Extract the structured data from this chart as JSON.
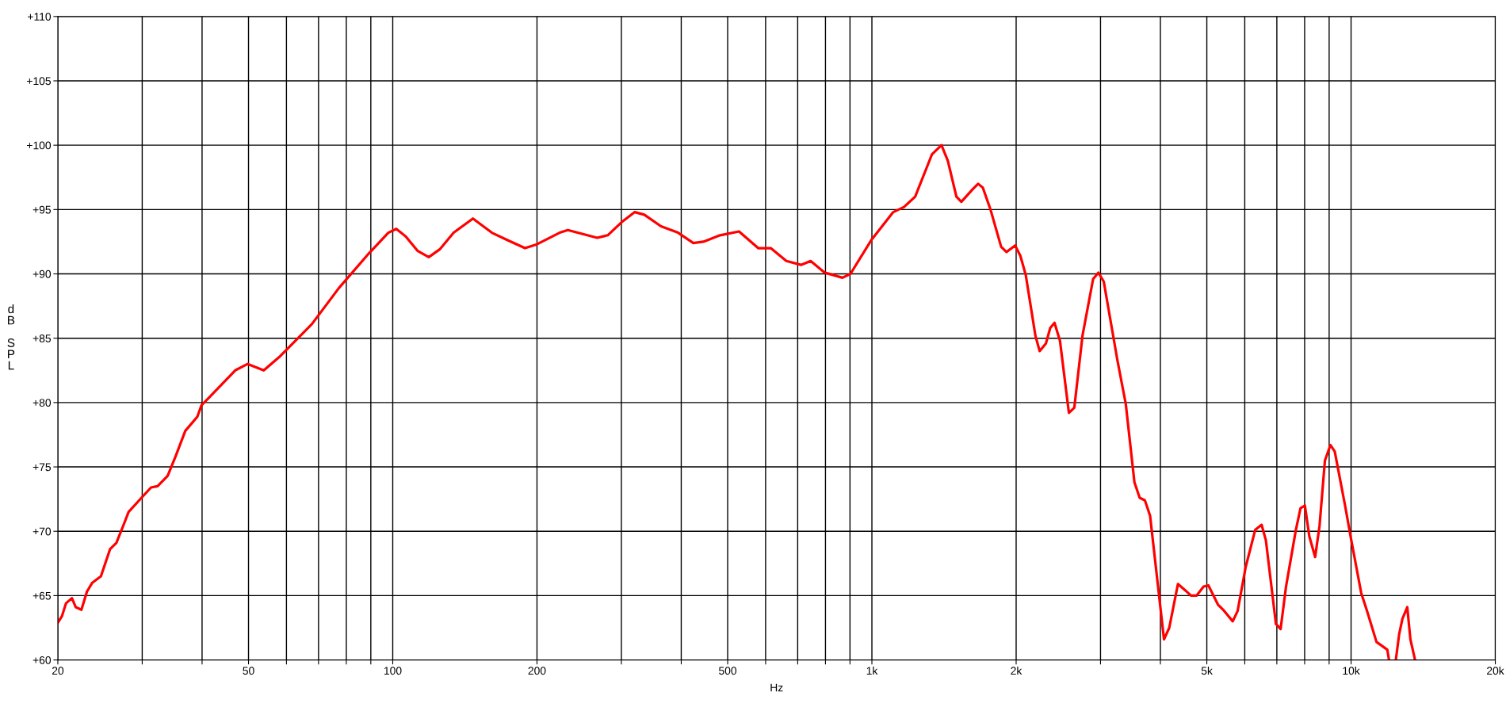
{
  "chart_data": {
    "type": "line",
    "xlabel": "Hz",
    "ylabel": "dB SPL",
    "log": "x",
    "grid": true,
    "marker": "none",
    "line_style": "solid",
    "xlim": [
      20,
      20000
    ],
    "ylim": [
      60,
      110
    ],
    "xticks": [
      20,
      {
        "value": 30,
        "label": null
      },
      {
        "value": 40,
        "label": null
      },
      50,
      {
        "value": 60,
        "label": null
      },
      {
        "value": 70,
        "label": null
      },
      {
        "value": 80,
        "label": null
      },
      {
        "value": 90,
        "label": null
      },
      100,
      200,
      {
        "value": 300,
        "label": null
      },
      {
        "value": 400,
        "label": null
      },
      500,
      {
        "value": 600,
        "label": null
      },
      {
        "value": 700,
        "label": null
      },
      {
        "value": 800,
        "label": null
      },
      {
        "value": 900,
        "label": null
      },
      {
        "value": 1000,
        "label": "1k"
      },
      {
        "value": 2000,
        "label": "2k"
      },
      {
        "value": 3000,
        "label": null
      },
      {
        "value": 4000,
        "label": null
      },
      {
        "value": 5000,
        "label": "5k"
      },
      {
        "value": 6000,
        "label": null
      },
      {
        "value": 7000,
        "label": null
      },
      {
        "value": 8000,
        "label": null
      },
      {
        "value": 9000,
        "label": null
      },
      {
        "value": 10000,
        "label": "10k"
      },
      {
        "value": 20000,
        "label": "20k"
      }
    ],
    "yticks": [
      {
        "value": 60,
        "label": "+60"
      },
      {
        "value": 65,
        "label": "+65"
      },
      {
        "value": 70,
        "label": "+70"
      },
      {
        "value": 75,
        "label": "+75"
      },
      {
        "value": 80,
        "label": "+80"
      },
      {
        "value": 85,
        "label": "+85"
      },
      {
        "value": 90,
        "label": "+90"
      },
      {
        "value": 95,
        "label": "+95"
      },
      {
        "value": 100,
        "label": "+100"
      },
      {
        "value": 105,
        "label": "+105"
      },
      {
        "value": 110,
        "label": "+110"
      }
    ],
    "series": [
      {
        "color": "#ff0000",
        "x": [
          20,
          20.4,
          20.8,
          21.4,
          21.8,
          22.4,
          23.0,
          23.6,
          24.6,
          25.7,
          26.5,
          27.5,
          28.1,
          29.9,
          31.3,
          32.3,
          33.9,
          35.2,
          36.9,
          39.1,
          39.9,
          41.4,
          46.9,
          49.8,
          53.8,
          58.2,
          60,
          67.8,
          77.2,
          89.2,
          97.9,
          101.7,
          106.5,
          112.6,
          118.9,
          125.3,
          134,
          147,
          161,
          174,
          188.8,
          200,
          223,
          232,
          267,
          281,
          300,
          320,
          335,
          363,
          394,
          424,
          445,
          482,
          528,
          579,
          615,
          663,
          711,
          745,
          797,
          868,
          902,
          996,
          1108,
          1167,
          1231,
          1335,
          1397,
          1440,
          1501,
          1537,
          1625,
          1666,
          1704,
          1768,
          1861,
          1909,
          1990,
          2041,
          2095,
          2194,
          2239,
          2308,
          2356,
          2405,
          2469,
          2577,
          2645,
          2751,
          2895,
          2969,
          3047,
          3253,
          3387,
          3531,
          3621,
          3713,
          3807,
          3969,
          4070,
          4174,
          4352,
          4511,
          4633,
          4758,
          4923,
          5037,
          5275,
          5409,
          5663,
          5797,
          6025,
          6308,
          6506,
          6641,
          6969,
          7128,
          7316,
          7670,
          7844,
          8010,
          8183,
          8415,
          8593,
          8820,
          9055,
          9246,
          9716,
          10000,
          10500,
          10800,
          11300,
          11900,
          12000,
          12200,
          12400,
          12600,
          12800,
          13100,
          13300,
          13600
        ],
        "values": [
          62.9,
          63.4,
          64.4,
          64.8,
          64.1,
          63.9,
          65.3,
          66.0,
          66.5,
          68.6,
          69.1,
          70.6,
          71.5,
          72.6,
          73.4,
          73.5,
          74.3,
          75.8,
          77.8,
          78.9,
          79.8,
          80.4,
          82.5,
          83.0,
          82.5,
          83.6,
          84.1,
          86.1,
          88.9,
          91.6,
          93.2,
          93.5,
          92.9,
          91.8,
          91.3,
          91.9,
          93.2,
          94.3,
          93.2,
          92.6,
          92.0,
          92.3,
          93.2,
          93.4,
          92.8,
          93.0,
          94.0,
          94.8,
          94.6,
          93.7,
          93.2,
          92.4,
          92.5,
          93.0,
          93.3,
          92.0,
          92.0,
          91.0,
          90.7,
          91.0,
          90.1,
          89.7,
          90.0,
          92.6,
          94.8,
          95.2,
          96.0,
          99.3,
          100.0,
          98.8,
          96.0,
          95.6,
          96.6,
          97.0,
          96.7,
          95.0,
          92.1,
          91.7,
          92.2,
          91.4,
          89.9,
          85.2,
          84.0,
          84.6,
          85.8,
          86.2,
          84.8,
          79.2,
          79.6,
          85.2,
          89.6,
          90.1,
          89.4,
          83.3,
          79.9,
          73.8,
          72.6,
          72.4,
          71.2,
          65.2,
          61.6,
          62.5,
          65.9,
          65.4,
          65.0,
          65.0,
          65.7,
          65.8,
          64.3,
          63.9,
          63.0,
          63.8,
          67.2,
          70.1,
          70.5,
          69.3,
          62.8,
          62.4,
          65.7,
          70.1,
          71.8,
          72.0,
          69.6,
          68.0,
          70.4,
          75.5,
          76.7,
          76.2,
          72.0,
          69.4,
          65.2,
          63.8,
          61.4,
          60.8,
          60.0,
          null,
          60.0,
          62.0,
          63.2,
          64.1,
          61.6,
          60.0
        ]
      }
    ]
  }
}
